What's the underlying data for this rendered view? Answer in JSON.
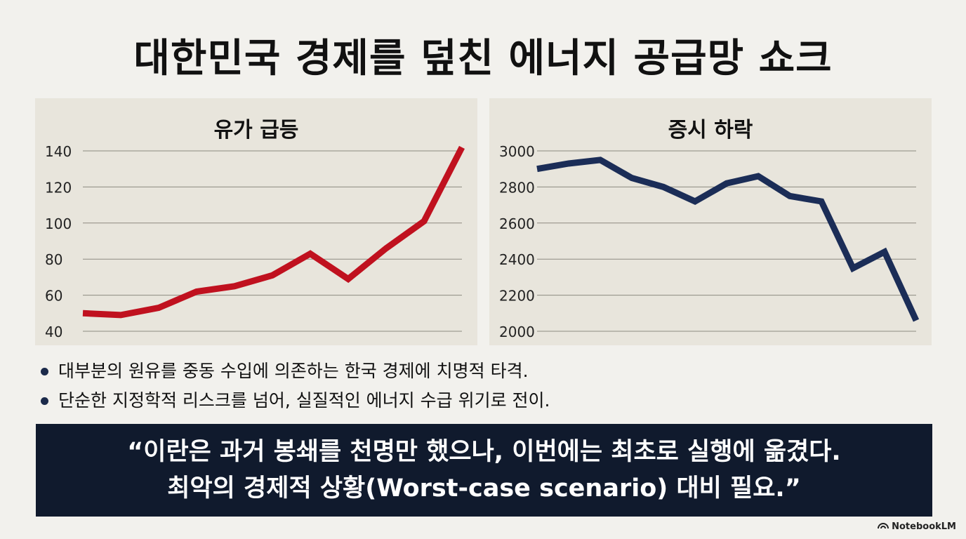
{
  "title": "대한민국 경제를 덮친 에너지 공급망 쇼크",
  "chart_data": [
    {
      "type": "line",
      "title": "유가 급등",
      "xlabel": "",
      "ylabel": "",
      "ylim": [
        40,
        140
      ],
      "yticks": [
        140,
        120,
        100,
        80,
        60,
        40
      ],
      "grid": true,
      "color": "#c0111f",
      "series": [
        {
          "values": [
            50,
            49,
            53,
            62,
            65,
            71,
            83,
            69,
            86,
            101,
            142
          ]
        }
      ]
    },
    {
      "type": "line",
      "title": "증시 하락",
      "xlabel": "",
      "ylabel": "",
      "ylim": [
        2000,
        3000
      ],
      "yticks": [
        3000,
        2800,
        2600,
        2400,
        2200,
        2000
      ],
      "grid": true,
      "color": "#1b2d57",
      "series": [
        {
          "values": [
            2900,
            2930,
            2950,
            2850,
            2800,
            2720,
            2820,
            2860,
            2750,
            2720,
            2350,
            2440,
            2060
          ]
        }
      ]
    }
  ],
  "bullets": [
    "대부분의 원유를 중동 수입에 의존하는 한국 경제에 치명적 타격.",
    "단순한 지정학적 리스크를 넘어, 실질적인 에너지 수급 위기로 전이."
  ],
  "quote": {
    "line1": "“이란은 과거 봉쇄를 천명만 했으나, 이번에는 최초로 실행에 옮겼다.",
    "line2": "최악의 경제적 상황(Worst-case scenario) 대비 필요.”"
  },
  "brand": "NotebookLM"
}
